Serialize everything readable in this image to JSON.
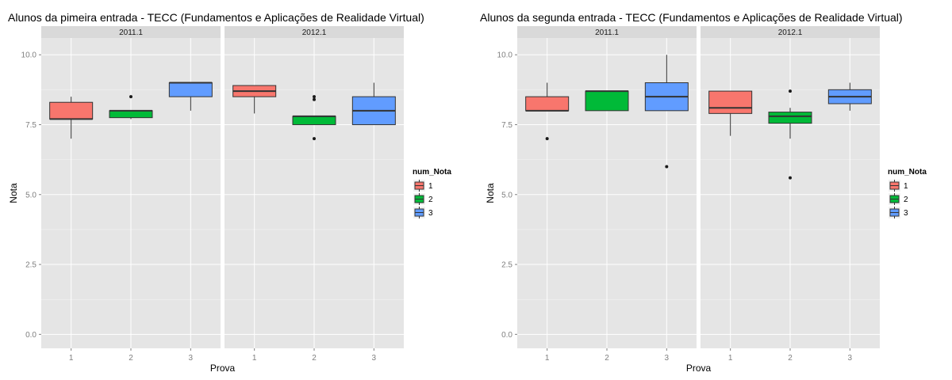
{
  "chart_data": [
    {
      "type": "boxplot",
      "title": "Alunos da pimeira entrada -  TECC (Fundamentos e Aplicações de Realidade Virtual)",
      "xlabel": "Prova",
      "ylabel": "Nota",
      "ylim": [
        -0.5,
        10.6
      ],
      "yticks": [
        "0.0",
        "2.5",
        "5.0",
        "7.5",
        "10.0"
      ],
      "categories": [
        "1",
        "2",
        "3"
      ],
      "grid": true,
      "legend": {
        "title": "num_Nota",
        "position": "right",
        "items": [
          "1",
          "2",
          "3"
        ]
      },
      "colors": {
        "1": "#F8766D",
        "2": "#00BA38",
        "3": "#619CFF"
      },
      "facets": [
        {
          "label": "2011.1",
          "boxes": [
            {
              "x": "1",
              "group": "1",
              "min": 7.0,
              "q1": 7.7,
              "median": 7.7,
              "q3": 8.3,
              "max": 8.5,
              "outliers": []
            },
            {
              "x": "2",
              "group": "2",
              "min": 7.7,
              "q1": 7.75,
              "median": 8.0,
              "q3": 8.0,
              "max": 8.0,
              "outliers": [
                8.5
              ]
            },
            {
              "x": "3",
              "group": "3",
              "min": 8.0,
              "q1": 8.5,
              "median": 9.0,
              "q3": 9.0,
              "max": 9.0,
              "outliers": []
            }
          ]
        },
        {
          "label": "2012.1",
          "boxes": [
            {
              "x": "1",
              "group": "1",
              "min": 7.9,
              "q1": 8.5,
              "median": 8.7,
              "q3": 8.9,
              "max": 8.9,
              "outliers": []
            },
            {
              "x": "2",
              "group": "2",
              "min": 7.5,
              "q1": 7.5,
              "median": 7.8,
              "q3": 7.8,
              "max": 7.8,
              "outliers": [
                8.4,
                8.5,
                7.0
              ]
            },
            {
              "x": "3",
              "group": "3",
              "min": 7.5,
              "q1": 7.5,
              "median": 8.0,
              "q3": 8.5,
              "max": 9.0,
              "outliers": []
            }
          ]
        }
      ]
    },
    {
      "type": "boxplot",
      "title": "Alunos da segunda entrada -  TECC (Fundamentos e Aplicações de Realidade Virtual)",
      "xlabel": "Prova",
      "ylabel": "Nota",
      "ylim": [
        -0.5,
        10.6
      ],
      "yticks": [
        "0.0",
        "2.5",
        "5.0",
        "7.5",
        "10.0"
      ],
      "categories": [
        "1",
        "2",
        "3"
      ],
      "grid": true,
      "legend": {
        "title": "num_Nota",
        "position": "right",
        "items": [
          "1",
          "2",
          "3"
        ]
      },
      "colors": {
        "1": "#F8766D",
        "2": "#00BA38",
        "3": "#619CFF"
      },
      "facets": [
        {
          "label": "2011.1",
          "boxes": [
            {
              "x": "1",
              "group": "1",
              "min": 8.0,
              "q1": 8.0,
              "median": 8.0,
              "q3": 8.5,
              "max": 9.0,
              "outliers": [
                7.0
              ]
            },
            {
              "x": "2",
              "group": "2",
              "min": 8.0,
              "q1": 8.0,
              "median": 8.7,
              "q3": 8.7,
              "max": 8.7,
              "outliers": []
            },
            {
              "x": "3",
              "group": "3",
              "min": 8.0,
              "q1": 8.0,
              "median": 8.5,
              "q3": 9.0,
              "max": 10.0,
              "outliers": [
                6.0
              ]
            }
          ]
        },
        {
          "label": "2012.1",
          "boxes": [
            {
              "x": "1",
              "group": "1",
              "min": 7.1,
              "q1": 7.9,
              "median": 8.1,
              "q3": 8.7,
              "max": 8.7,
              "outliers": []
            },
            {
              "x": "2",
              "group": "2",
              "min": 7.0,
              "q1": 7.55,
              "median": 7.8,
              "q3": 7.95,
              "max": 8.1,
              "outliers": [
                8.7,
                5.6
              ]
            },
            {
              "x": "3",
              "group": "3",
              "min": 8.0,
              "q1": 8.25,
              "median": 8.5,
              "q3": 8.75,
              "max": 9.0,
              "outliers": []
            }
          ]
        }
      ]
    }
  ]
}
